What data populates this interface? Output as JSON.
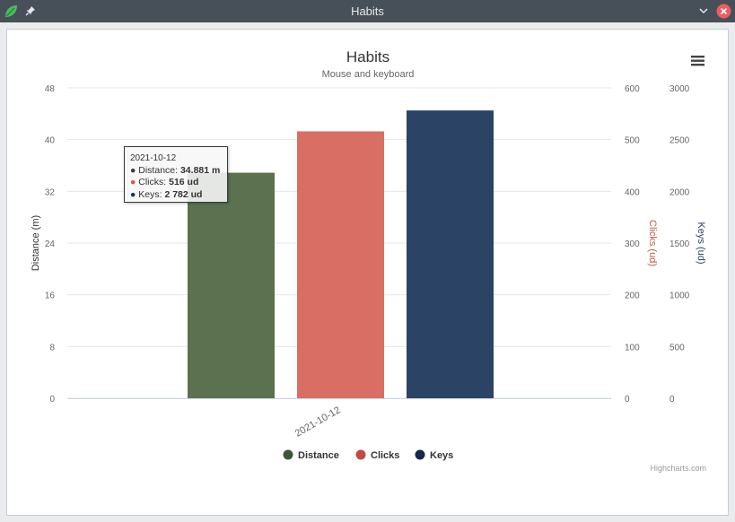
{
  "window": {
    "title": "Habits",
    "icons": {
      "app": "leaf-icon",
      "pin": "pin-icon",
      "minimize": "chevron-down-icon",
      "close": "close-icon"
    }
  },
  "menu_icon": "hamburger-menu-icon",
  "credits": "Highcharts.com",
  "tooltip": {
    "header": "2021-10-12",
    "rows": [
      {
        "label": "Distance",
        "value": "34.881 m",
        "color": "#556b4b"
      },
      {
        "label": "Clicks",
        "value": "516 ud",
        "color": "#d3584c"
      },
      {
        "label": "Keys",
        "value": "2 782 ud",
        "color": "#1b3050"
      }
    ]
  },
  "chart_data": {
    "type": "bar",
    "title": "Habits",
    "subtitle": "Mouse and keyboard",
    "categories": [
      "2021-10-12"
    ],
    "series": [
      {
        "name": "Distance",
        "values": [
          34.881
        ],
        "axis": "Distance (m)",
        "color": "#5b7150",
        "legend_color": "#3e5436"
      },
      {
        "name": "Clicks",
        "values": [
          516
        ],
        "axis": "Clicks (ud)",
        "color": "#d86e64",
        "legend_color": "#c4483e"
      },
      {
        "name": "Keys",
        "values": [
          2782
        ],
        "axis": "Keys (ud)",
        "color": "#2b4465",
        "legend_color": "#16294a"
      }
    ],
    "axes": [
      {
        "id": "distance",
        "label": "Distance (m)",
        "side": "left",
        "range": [
          0,
          48
        ],
        "ticks": [
          0,
          8,
          16,
          24,
          32,
          40,
          48
        ],
        "label_color": "#333333"
      },
      {
        "id": "clicks",
        "label": "Clicks (ud)",
        "side": "right",
        "range": [
          0,
          600
        ],
        "ticks": [
          0,
          100,
          200,
          300,
          400,
          500,
          600
        ],
        "label_color": "#c0593f"
      },
      {
        "id": "keys",
        "label": "Keys (ud)",
        "side": "right",
        "range": [
          0,
          3000
        ],
        "ticks": [
          0,
          500,
          1000,
          1500,
          2000,
          2500,
          3000
        ],
        "label_color": "#2b4465"
      }
    ],
    "grid": true,
    "legend": "bottom-center"
  }
}
